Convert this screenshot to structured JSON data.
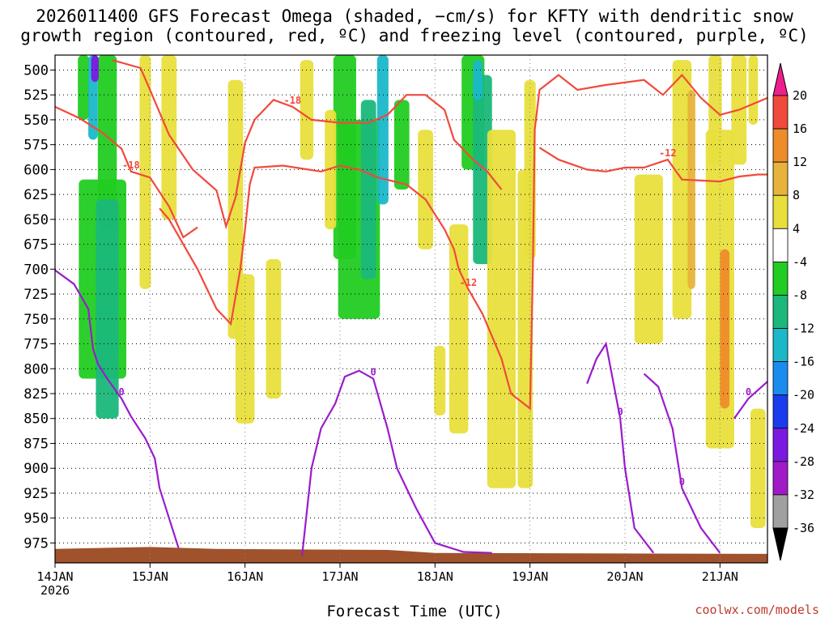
{
  "title_line1": "2026011400 GFS Forecast Omega (shaded, −cm/s) for KFTY with dendritic snow",
  "title_line2": "growth region (contoured, red, ºC) and freezing level (contoured, purple, ºC)",
  "xlabel": "Forecast Time (UTC)",
  "credit": "coolwx.com/models",
  "colors": {
    "dgz_contour": "#f04a3c",
    "freezing_contour": "#9a1ccc",
    "terrain": "#a0522d",
    "grid": "#888888"
  },
  "chart_data": {
    "type": "heatmap",
    "title": "2026011400 GFS Forecast Omega (shaded, −cm/s) for KFTY with dendritic snow growth region (contoured, red, ºC) and freezing level (contoured, purple, ºC)",
    "xlabel": "Forecast Time (UTC)",
    "ylabel": "",
    "x_ticks": [
      "14JAN\n2026",
      "15JAN",
      "16JAN",
      "17JAN",
      "18JAN",
      "19JAN",
      "20JAN",
      "21JAN"
    ],
    "x_range_days": [
      0,
      7.5
    ],
    "y_ticks": [
      500,
      525,
      550,
      575,
      600,
      625,
      650,
      675,
      700,
      725,
      750,
      775,
      800,
      825,
      850,
      875,
      900,
      925,
      950,
      975
    ],
    "y_range_hpa": [
      485,
      995
    ],
    "y_inverted": true,
    "grid": true,
    "colorbar": {
      "labels": [
        "20",
        "16",
        "12",
        "8",
        "4",
        "-4",
        "-8",
        "-12",
        "-16",
        "-20",
        "-24",
        "-28",
        "-32",
        "-36"
      ],
      "colors": [
        "#ee1f8c",
        "#f04a3c",
        "#ee8c2a",
        "#e8b33c",
        "#e8df3c",
        "#ffffff",
        "#22cc22",
        "#1ab87a",
        "#1ab8c8",
        "#1a8cee",
        "#1a3cee",
        "#7a1ae0",
        "#a01ac8",
        "#a0a0a0",
        "#000000"
      ]
    },
    "contours": {
      "dgz_red": [
        {
          "label": "-18",
          "points": [
            [
              0,
              537
            ],
            [
              0.25,
              548
            ],
            [
              0.5,
              563
            ],
            [
              0.7,
              579
            ],
            [
              0.8,
              602
            ],
            [
              1.0,
              608
            ],
            [
              1.2,
              637
            ],
            [
              1.35,
              668
            ],
            [
              1.5,
              658
            ]
          ]
        },
        {
          "label": "-18",
          "points": [
            [
              0.6,
              490
            ],
            [
              0.9,
              498
            ],
            [
              1.0,
              520
            ],
            [
              1.2,
              565
            ],
            [
              1.45,
              600
            ],
            [
              1.7,
              621
            ],
            [
              1.8,
              657
            ],
            [
              1.9,
              628
            ],
            [
              2.0,
              573
            ],
            [
              2.1,
              550
            ],
            [
              2.3,
              530
            ],
            [
              2.5,
              537
            ],
            [
              2.7,
              550
            ],
            [
              3.0,
              553
            ],
            [
              3.3,
              553
            ],
            [
              3.5,
              545
            ],
            [
              3.7,
              525
            ],
            [
              3.9,
              525
            ],
            [
              4.1,
              540
            ],
            [
              4.2,
              570
            ],
            [
              4.4,
              590
            ],
            [
              4.55,
              602
            ],
            [
              4.7,
              620
            ]
          ]
        },
        {
          "label": "-12",
          "points": [
            [
              1.1,
              639
            ],
            [
              1.2,
              650
            ],
            [
              1.5,
              700
            ],
            [
              1.7,
              740
            ],
            [
              1.85,
              755
            ],
            [
              1.95,
              700
            ],
            [
              2.0,
              660
            ],
            [
              2.05,
              615
            ],
            [
              2.1,
              598
            ],
            [
              2.4,
              596
            ],
            [
              2.8,
              602
            ],
            [
              3.0,
              596
            ],
            [
              3.2,
              600
            ],
            [
              3.4,
              608
            ],
            [
              3.7,
              615
            ],
            [
              3.9,
              630
            ],
            [
              4.1,
              660
            ],
            [
              4.2,
              680
            ],
            [
              4.25,
              700
            ],
            [
              4.35,
              720
            ],
            [
              4.5,
              745
            ],
            [
              4.7,
              790
            ],
            [
              4.8,
              825
            ],
            [
              5.0,
              840
            ],
            [
              5.03,
              700
            ],
            [
              5.05,
              560
            ],
            [
              5.1,
              520
            ],
            [
              5.3,
              505
            ],
            [
              5.5,
              520
            ],
            [
              5.8,
              515
            ],
            [
              6.2,
              510
            ],
            [
              6.4,
              525
            ],
            [
              6.6,
              505
            ],
            [
              6.8,
              528
            ],
            [
              7.0,
              545
            ],
            [
              7.2,
              540
            ],
            [
              7.4,
              532
            ],
            [
              7.5,
              528
            ]
          ]
        },
        {
          "label": "-12",
          "points": [
            [
              5.1,
              578
            ],
            [
              5.3,
              590
            ],
            [
              5.6,
              600
            ],
            [
              5.8,
              602
            ],
            [
              6.0,
              598
            ],
            [
              6.2,
              598
            ],
            [
              6.45,
              590
            ],
            [
              6.6,
              610
            ],
            [
              6.8,
              611
            ],
            [
              7.0,
              612
            ],
            [
              7.2,
              607
            ],
            [
              7.4,
              605
            ],
            [
              7.5,
              605
            ]
          ]
        }
      ],
      "freezing_purple": [
        {
          "label": "0",
          "points": [
            [
              0,
              701
            ],
            [
              0.2,
              715
            ],
            [
              0.35,
              740
            ],
            [
              0.4,
              780
            ],
            [
              0.45,
              795
            ],
            [
              0.55,
              810
            ],
            [
              0.7,
              830
            ],
            [
              0.8,
              848
            ],
            [
              0.95,
              870
            ],
            [
              1.05,
              890
            ],
            [
              1.1,
              920
            ],
            [
              1.2,
              950
            ],
            [
              1.3,
              980
            ]
          ]
        },
        {
          "label": "0",
          "points": [
            [
              2.6,
              988
            ],
            [
              2.7,
              900
            ],
            [
              2.8,
              860
            ],
            [
              2.95,
              835
            ],
            [
              3.05,
              808
            ],
            [
              3.2,
              802
            ],
            [
              3.35,
              810
            ],
            [
              3.5,
              860
            ],
            [
              3.6,
              900
            ],
            [
              3.8,
              940
            ],
            [
              4.0,
              975
            ],
            [
              4.3,
              984
            ],
            [
              4.6,
              985
            ]
          ]
        },
        {
          "label": "0",
          "points": [
            [
              5.6,
              815
            ],
            [
              5.7,
              790
            ],
            [
              5.8,
              775
            ],
            [
              5.85,
              800
            ],
            [
              5.95,
              850
            ],
            [
              6.0,
              900
            ],
            [
              6.05,
              930
            ],
            [
              6.1,
              960
            ],
            [
              6.3,
              985
            ]
          ]
        },
        {
          "label": "0",
          "points": [
            [
              6.2,
              805
            ],
            [
              6.35,
              818
            ],
            [
              6.5,
              860
            ],
            [
              6.6,
              920
            ],
            [
              6.8,
              960
            ],
            [
              7.0,
              985
            ]
          ]
        },
        {
          "label": "0",
          "points": [
            [
              7.15,
              850
            ],
            [
              7.3,
              830
            ],
            [
              7.5,
              813
            ]
          ]
        }
      ]
    }
  }
}
